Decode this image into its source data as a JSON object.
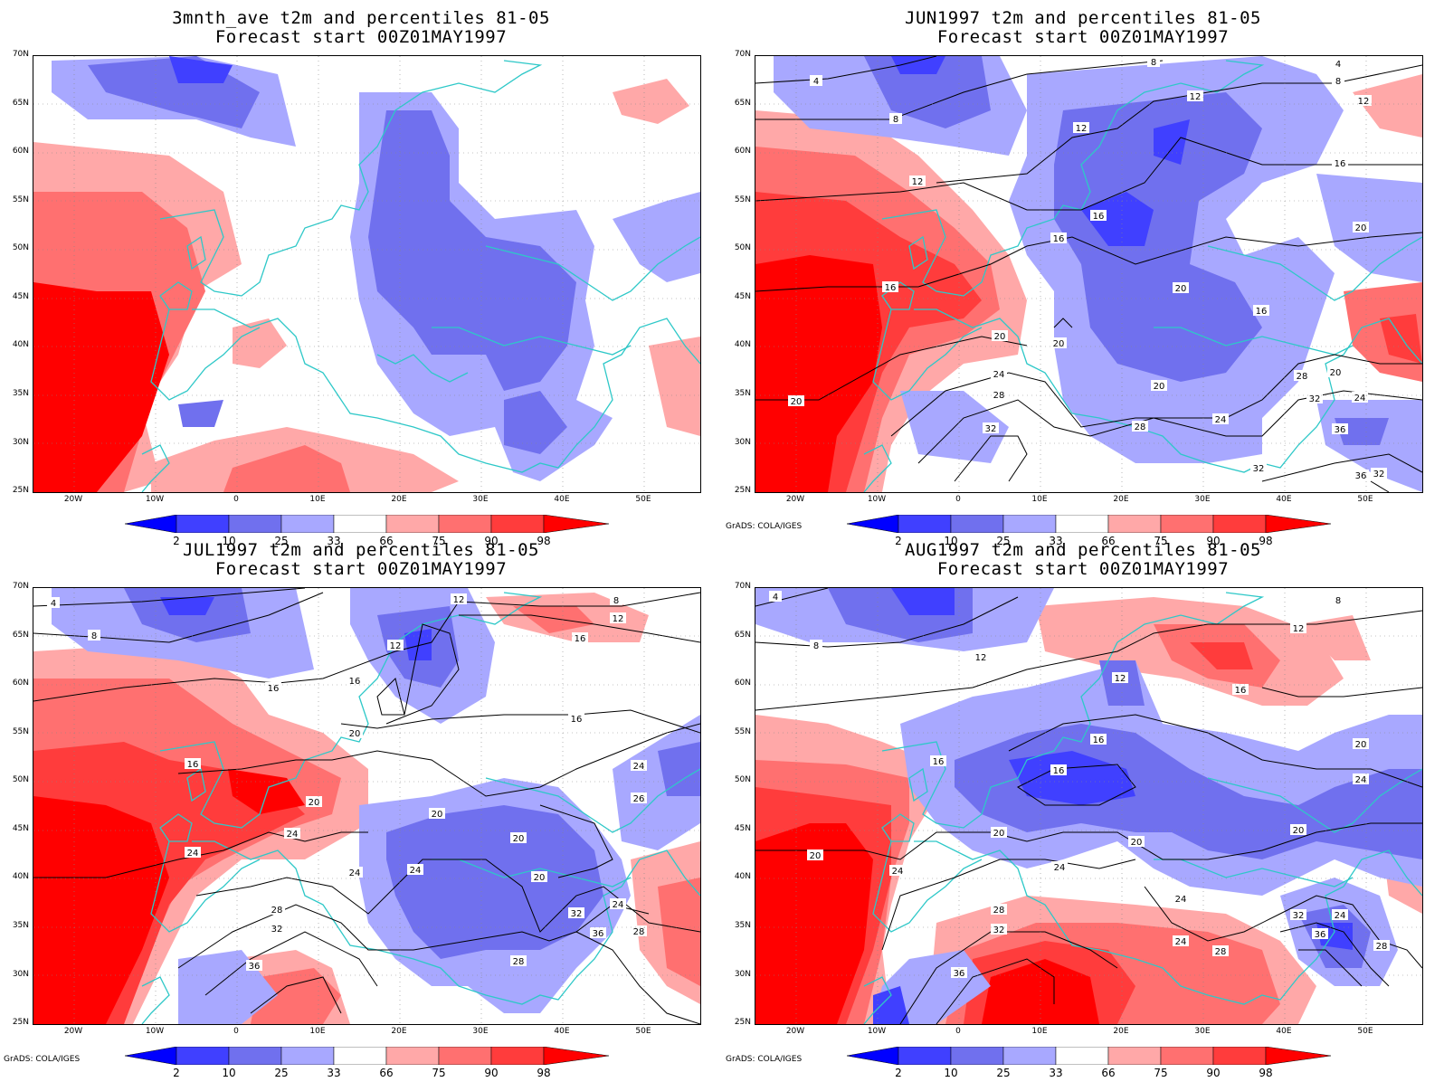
{
  "panels": [
    {
      "title_line1": "3mnth_ave t2m and percentiles 81-05",
      "title_line2": "Forecast start 00Z01MAY1997",
      "contour_labels": [],
      "credit": ""
    },
    {
      "title_line1": "JUN1997 t2m and percentiles 81-05",
      "title_line2": "Forecast start 00Z01MAY1997",
      "contour_labels": [
        "4",
        "8",
        "8",
        "4",
        "8",
        "12",
        "12",
        "12",
        "16",
        "12",
        "16",
        "16",
        "16",
        "20",
        "20",
        "20",
        "20",
        "20",
        "24",
        "28",
        "24",
        "28",
        "32",
        "32",
        "28",
        "16",
        "20",
        "24",
        "36",
        "32",
        "36",
        "32",
        "20",
        "20"
      ],
      "credit": "GrADS: COLA/IGES"
    },
    {
      "title_line1": "JUL1997 t2m and percentiles 81-05",
      "title_line2": "Forecast start 00Z01MAY1997",
      "contour_labels": [
        "4",
        "8",
        "12",
        "8",
        "12",
        "16",
        "12",
        "16",
        "16",
        "20",
        "16",
        "16",
        "20",
        "20",
        "24",
        "24",
        "20",
        "20",
        "24",
        "24",
        "26",
        "24",
        "28",
        "32",
        "36",
        "28",
        "32",
        "36",
        "24",
        "28"
      ],
      "credit": "GrADS: COLA/IGES"
    },
    {
      "title_line1": "AUG1997 t2m and percentiles 81-05",
      "title_line2": "Forecast start 00Z01MAY1997",
      "contour_labels": [
        "4",
        "8",
        "8",
        "12",
        "12",
        "12",
        "16",
        "16",
        "16",
        "16",
        "20",
        "20",
        "20",
        "24",
        "24",
        "20",
        "24",
        "28",
        "32",
        "36",
        "28",
        "24",
        "24",
        "32",
        "36",
        "24",
        "28",
        "20",
        "20"
      ],
      "credit": "GrADS: COLA/IGES"
    }
  ],
  "axes": {
    "lat_labels": [
      "70N",
      "65N",
      "60N",
      "55N",
      "50N",
      "45N",
      "40N",
      "35N",
      "30N",
      "25N"
    ],
    "lon_labels": [
      "20W",
      "10W",
      "0",
      "10E",
      "20E",
      "30E",
      "40E",
      "50E"
    ]
  },
  "colorbar": {
    "labels": [
      "2",
      "10",
      "25",
      "33",
      "66",
      "75",
      "90",
      "98"
    ],
    "colors": [
      "#0000ff",
      "#4040ff",
      "#7070ee",
      "#a8a8ff",
      "#ffffff",
      "#ffa8a8",
      "#ff7070",
      "#ff3c3c",
      "#ff0000"
    ]
  },
  "colors": {
    "coastline": "#2ec8c8",
    "contour": "#000000",
    "grid": "#888888"
  }
}
